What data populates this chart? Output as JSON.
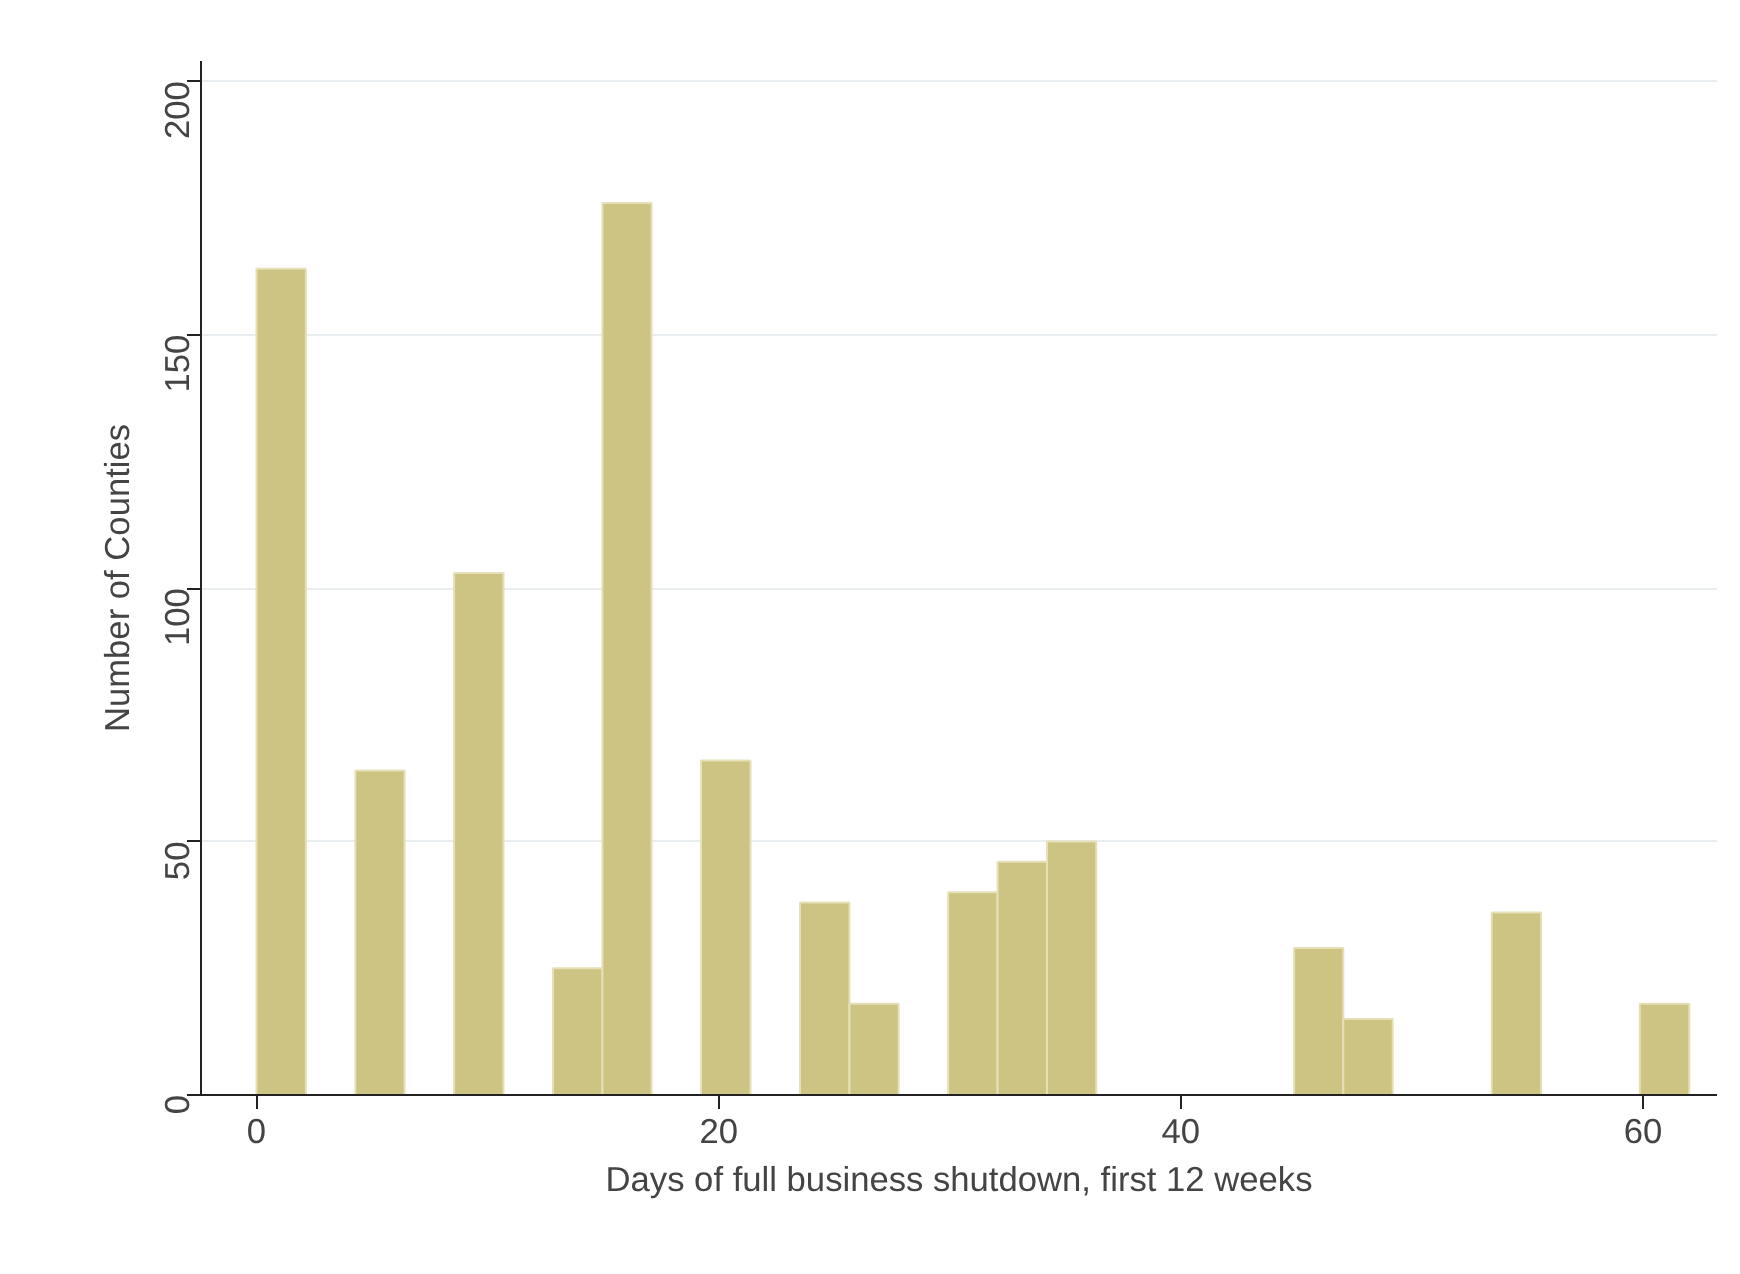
{
  "chart_data": {
    "type": "histogram",
    "xlabel": "Days of full business shutdown, first 12 weeks",
    "ylabel": "Number of Counties",
    "bins": [
      0,
      2.14,
      4.28,
      6.41,
      8.55,
      10.69,
      12.83,
      14.97,
      17.1,
      19.24,
      21.38,
      23.52,
      25.66,
      27.79,
      29.93,
      32.07,
      34.21,
      36.34,
      38.48,
      40.62,
      42.76,
      44.9,
      47.03,
      49.17,
      51.31,
      53.45,
      55.59,
      57.72,
      59.86,
      62.0
    ],
    "values": [
      163,
      0,
      64,
      0,
      103,
      0,
      25,
      176,
      0,
      66,
      0,
      38,
      18,
      0,
      40,
      46,
      50,
      0,
      0,
      0,
      0,
      29,
      15,
      0,
      0,
      36,
      0,
      0,
      18
    ],
    "color": "#cdc383",
    "xlim": [
      -2.4,
      63.2
    ],
    "ylim": [
      0,
      204
    ],
    "xticks": [
      0,
      20,
      40,
      60
    ],
    "yticks": [
      0,
      50,
      100,
      150,
      200
    ],
    "grid": "y"
  }
}
